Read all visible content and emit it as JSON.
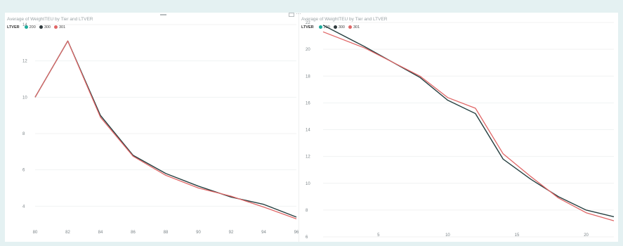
{
  "toolbar": {
    "more_label": "···"
  },
  "chart_data": [
    {
      "type": "line",
      "title": "Average of WeightTEU by Tier and LTVER",
      "legend_title": "LTVER",
      "legend_position": "top-left",
      "grid": true,
      "x": [
        80,
        82,
        84,
        86,
        88,
        90,
        92,
        94,
        96
      ],
      "xticks": [
        "80",
        "82",
        "84",
        "86",
        "88",
        "90",
        "92",
        "94",
        "96"
      ],
      "xlim": [
        80,
        96
      ],
      "yticks": [
        "4",
        "6",
        "8",
        "10",
        "12",
        "14"
      ],
      "ylim": [
        3.2,
        14
      ],
      "series": [
        {
          "name": "200",
          "color": "#1aab9b",
          "values": [
            10,
            13.1,
            9.0,
            6.8,
            5.8,
            5.1,
            4.5,
            4.1,
            3.4
          ]
        },
        {
          "name": "300",
          "color": "#2f3a3d",
          "values": [
            10,
            13.1,
            9.0,
            6.8,
            5.8,
            5.1,
            4.5,
            4.1,
            3.4
          ]
        },
        {
          "name": "301",
          "color": "#e06666",
          "values": [
            10,
            13.1,
            8.9,
            6.75,
            5.7,
            5.0,
            4.55,
            3.95,
            3.3
          ]
        }
      ]
    },
    {
      "type": "line",
      "title": "Average of WeightTEU by Tier and LTVER",
      "legend_title": "LTVER",
      "legend_position": "top-left",
      "grid": true,
      "x": [
        1,
        4,
        8,
        10,
        12,
        14,
        16,
        18,
        20,
        22
      ],
      "xticks": [
        "5",
        "10",
        "15",
        "20"
      ],
      "xtick_values": [
        5,
        10,
        15,
        20
      ],
      "xlim": [
        1,
        22
      ],
      "yticks": [
        "6",
        "8",
        "10",
        "12",
        "14",
        "16",
        "18",
        "20",
        "22"
      ],
      "ylim": [
        6,
        22
      ],
      "series": [
        {
          "name": "200",
          "color": "#1aab9b",
          "values": [
            21.8,
            20.2,
            17.9,
            16.2,
            15.2,
            11.8,
            10.3,
            9.0,
            8.0,
            7.5
          ]
        },
        {
          "name": "300",
          "color": "#2f3a3d",
          "values": [
            21.8,
            20.2,
            17.9,
            16.2,
            15.2,
            11.8,
            10.3,
            9.0,
            8.0,
            7.5
          ]
        },
        {
          "name": "301",
          "color": "#e06666",
          "values": [
            21.3,
            20.1,
            18.0,
            16.4,
            15.6,
            12.2,
            10.5,
            8.9,
            7.8,
            7.2
          ]
        }
      ]
    }
  ]
}
